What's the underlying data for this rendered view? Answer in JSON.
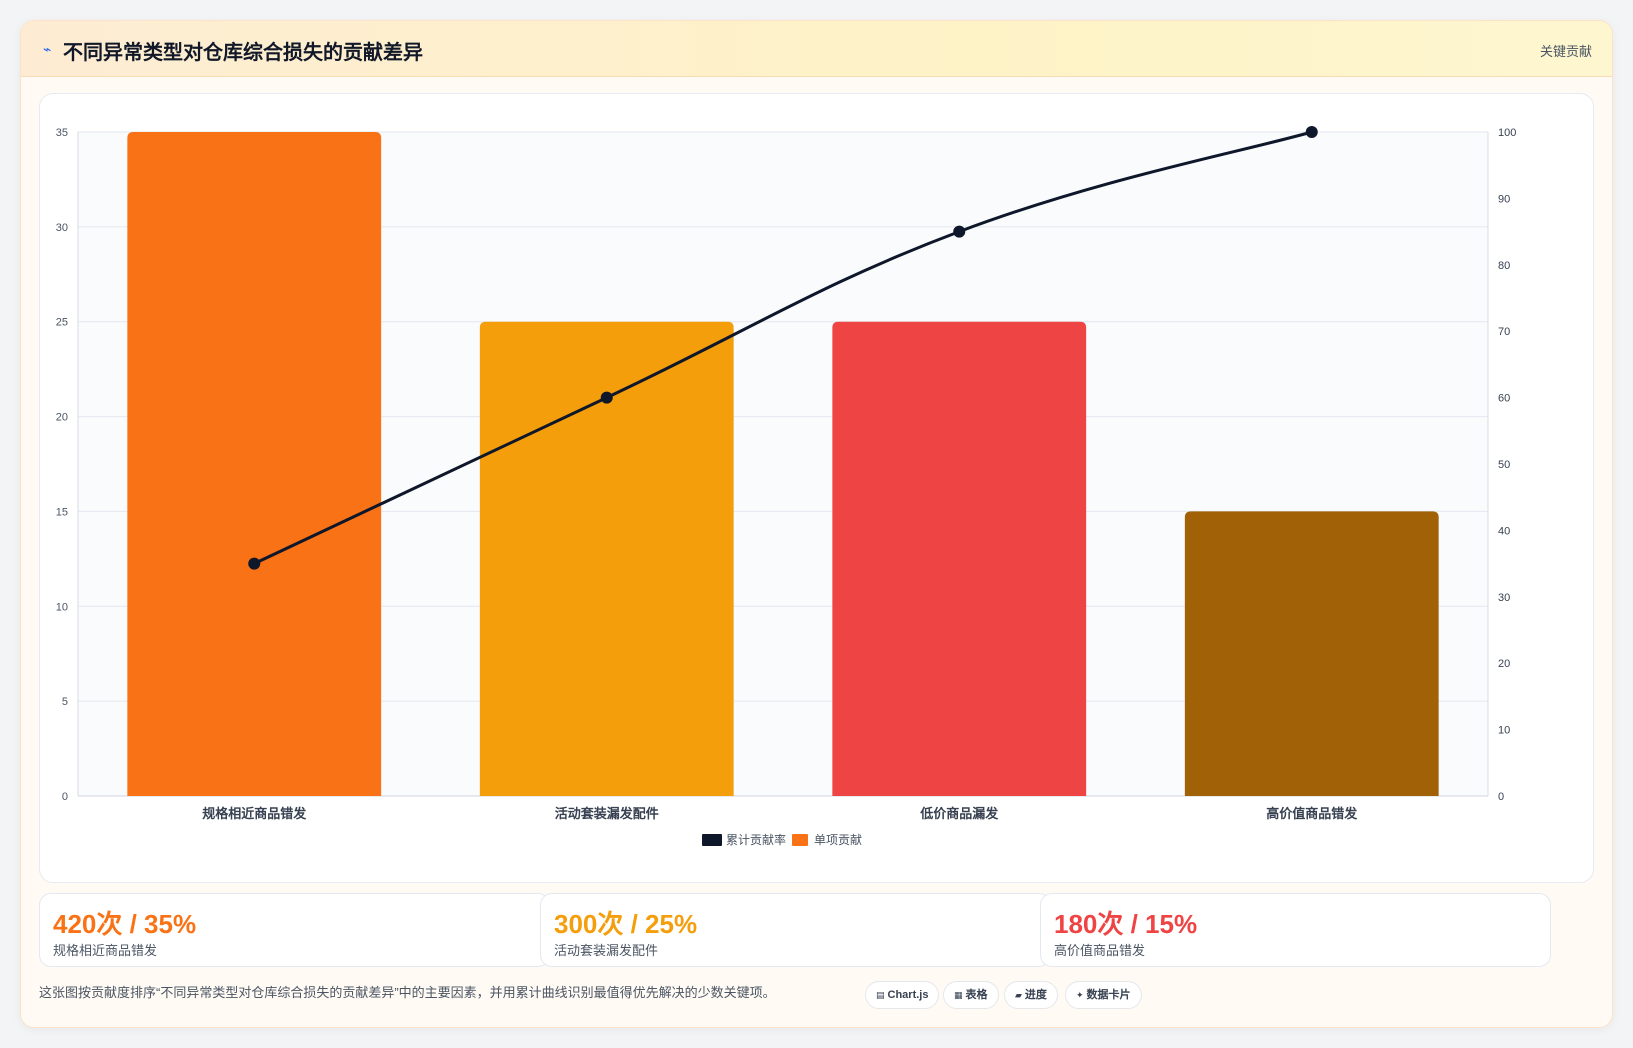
{
  "header": {
    "title": "不同异常类型对仓库综合损失的贡献差异",
    "tag": "关键贡献",
    "icon": "lightning-icon"
  },
  "chart_data": {
    "type": "bar",
    "categories": [
      "规格相近商品错发",
      "活动套装漏发配件",
      "低价商品漏发",
      "高价值商品错发"
    ],
    "series": [
      {
        "name": "单项贡献",
        "kind": "bar",
        "axis": "left",
        "values": [
          35,
          25,
          25,
          15
        ]
      },
      {
        "name": "累计贡献率",
        "kind": "line",
        "axis": "right",
        "values": [
          35,
          60,
          85,
          100
        ]
      }
    ],
    "bar_colors": [
      "#f97316",
      "#f59e0b",
      "#ef4444",
      "#a16207"
    ],
    "line_color": "#0f172a",
    "legend": [
      {
        "label": "累计贡献率",
        "color": "#0f172a"
      },
      {
        "label": "单项贡献",
        "color": "#f97316"
      }
    ],
    "legend_position": "bottom",
    "y_left": {
      "min": 0,
      "max": 35,
      "step": 5,
      "ticks": [
        "0",
        "5",
        "10",
        "15",
        "20",
        "25",
        "30",
        "35"
      ]
    },
    "y_right": {
      "min": 0,
      "max": 100,
      "step": 10,
      "ticks": [
        "0",
        "10",
        "20",
        "30",
        "40",
        "50",
        "60",
        "70",
        "80",
        "90",
        "100"
      ]
    },
    "grid": true
  },
  "stats": [
    {
      "value": "420次 / 35%",
      "label": "规格相近商品错发",
      "color": "#f97316"
    },
    {
      "value": "300次 / 25%",
      "label": "活动套装漏发配件",
      "color": "#f59e0b"
    },
    {
      "value": "180次 / 15%",
      "label": "高价值商品错发",
      "color": "#ef4444"
    }
  ],
  "footnote": "这张图按贡献度排序“不同异常类型对仓库综合损失的贡献差异”中的主要因素，并用累计曲线识别最值得优先解决的少数关键项。",
  "chips": [
    {
      "label": "Chart.js",
      "icon": "chart-icon"
    },
    {
      "label": "表格",
      "icon": "table-icon"
    },
    {
      "label": "进度",
      "icon": "progress-icon"
    },
    {
      "label": "数据卡片",
      "icon": "sparkle-icon"
    }
  ]
}
